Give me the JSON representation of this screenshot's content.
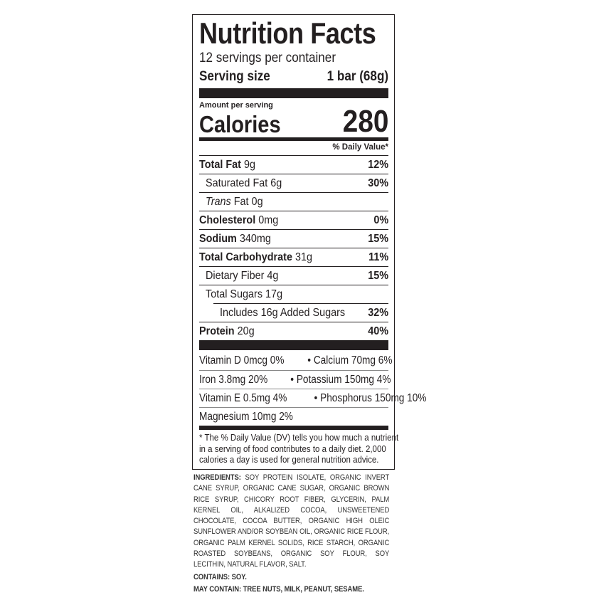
{
  "title": "Nutrition Facts",
  "servings": "12 servings per container",
  "serving_size": {
    "label": "Serving size",
    "value": "1 bar (68g)"
  },
  "amount_per_serving": "Amount per serving",
  "calories": {
    "label": "Calories",
    "value": "280"
  },
  "dv_header": "% Daily Value*",
  "nutrients": [
    {
      "name": "Total Fat",
      "amount": "9g",
      "dv": "12%"
    },
    {
      "name": "Saturated Fat",
      "amount": "6g",
      "dv": "30%"
    },
    {
      "name": "Trans",
      "suffix": "Fat 0g",
      "dv": ""
    },
    {
      "name": "Cholesterol",
      "amount": "0mg",
      "dv": "0%"
    },
    {
      "name": "Sodium",
      "amount": "340mg",
      "dv": "15%"
    },
    {
      "name": "Total Carbohydrate",
      "amount": "31g",
      "dv": "11%"
    },
    {
      "name": "Dietary Fiber",
      "amount": "4g",
      "dv": "15%"
    },
    {
      "name": "Total Sugars",
      "amount": "17g",
      "dv": ""
    },
    {
      "name": "Includes 16g Added Sugars",
      "amount": "",
      "dv": "32%"
    },
    {
      "name": "Protein",
      "amount": "20g",
      "dv": "40%"
    }
  ],
  "vitamins": [
    {
      "left": "Vitamin D 0mcg 0%",
      "right": "•     Calcium 70mg 6%"
    },
    {
      "left": "Iron 3.8mg 20%",
      "right": "• Potassium 150mg 4%"
    },
    {
      "left": "Vitamin E 0.5mg 4%",
      "right": "• Phosphorus 150mg 10%"
    },
    {
      "left": "Magnesium 10mg 2%",
      "right": ""
    }
  ],
  "footnote": "* The % Daily Value (DV) tells you how much a nutrient in a serving of food contributes to a daily diet. 2,000 calories a day is used for general nutrition advice.",
  "ingredients": {
    "label": "INGREDIENTS:",
    "text": "SOY PROTEIN ISOLATE, ORGANIC INVERT CANE SYRUP, ORGANIC CANE SUGAR, ORGANIC BROWN RICE SYRUP, CHICORY ROOT FIBER, GLYCERIN, PALM KERNEL OIL, ALKALIZED COCOA, UNSWEETENED CHOCOLATE, COCOA BUTTER, ORGANIC HIGH OLEIC SUNFLOWER AND/OR SOYBEAN OIL, ORGANIC RICE FLOUR, ORGANIC PALM KERNEL SOLIDS, RICE STARCH, ORGANIC ROASTED SOYBEANS, ORGANIC SOY FLOUR, SOY LECITHIN, NATURAL FLAVOR, SALT."
  },
  "contains": "CONTAINS: SOY.",
  "may_contain": "MAY CONTAIN: TREE NUTS, MILK, PEANUT, SESAME."
}
